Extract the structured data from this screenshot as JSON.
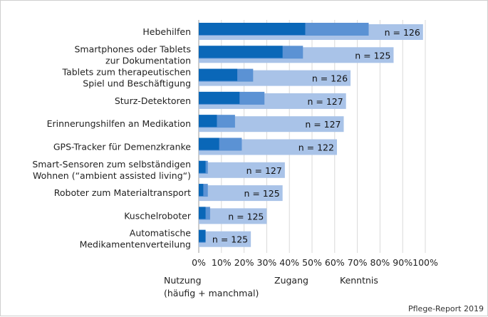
{
  "chart_data": {
    "type": "bar",
    "orientation": "horizontal",
    "layout": "overlapping",
    "categories": [
      [
        "Hebehilfen"
      ],
      [
        "Smartphones oder Tablets",
        "zur Dokumentation"
      ],
      [
        "Tablets zum therapeutischen",
        "Spiel und Beschäftigung"
      ],
      [
        "Sturz-Detektoren"
      ],
      [
        "Erinnerungshilfen an Medikation"
      ],
      [
        "GPS-Tracker für Demenzkranke"
      ],
      [
        "Smart-Sensoren zum selbständigen",
        "Wohnen (“ambient assisted living“)"
      ],
      [
        "Roboter zum Materialtransport"
      ],
      [
        "Kuschelroboter"
      ],
      [
        "Automatische",
        "Medikamentenverteilung"
      ]
    ],
    "n_labels": [
      "n = 126",
      "n = 125",
      "n = 126",
      "n = 127",
      "n = 127",
      "n = 122",
      "n = 127",
      "n = 125",
      "n = 125",
      "n = 125"
    ],
    "series": [
      {
        "name": "Kenntnis",
        "color": "#a9c3e8",
        "values": [
          99,
          86,
          67,
          65,
          64,
          61,
          38,
          37,
          30,
          23
        ]
      },
      {
        "name": "Zugang",
        "color": "#5b92d4",
        "values": [
          75,
          46,
          24,
          29,
          16,
          19,
          4,
          4,
          5,
          3
        ]
      },
      {
        "name": "Nutzung (häufig + manchmal)",
        "color": "#0a67b8",
        "values": [
          47,
          37,
          17,
          18,
          8,
          9,
          3,
          2,
          3,
          3
        ]
      }
    ],
    "xlim": [
      0,
      100
    ],
    "x_ticks": [
      "0%",
      "10%",
      "20%",
      "30%",
      "40%",
      "50%",
      "60%",
      "70%",
      "80%",
      "90%",
      "100%"
    ],
    "gridlines": true,
    "legend": {
      "placement": "bottom",
      "items": [
        {
          "lines": [
            "Nutzung",
            "(häufig + manchmal)"
          ]
        },
        {
          "lines": [
            "Zugang"
          ]
        },
        {
          "lines": [
            "Kenntnis"
          ]
        }
      ]
    },
    "source": "Pflege-Report 2019"
  }
}
